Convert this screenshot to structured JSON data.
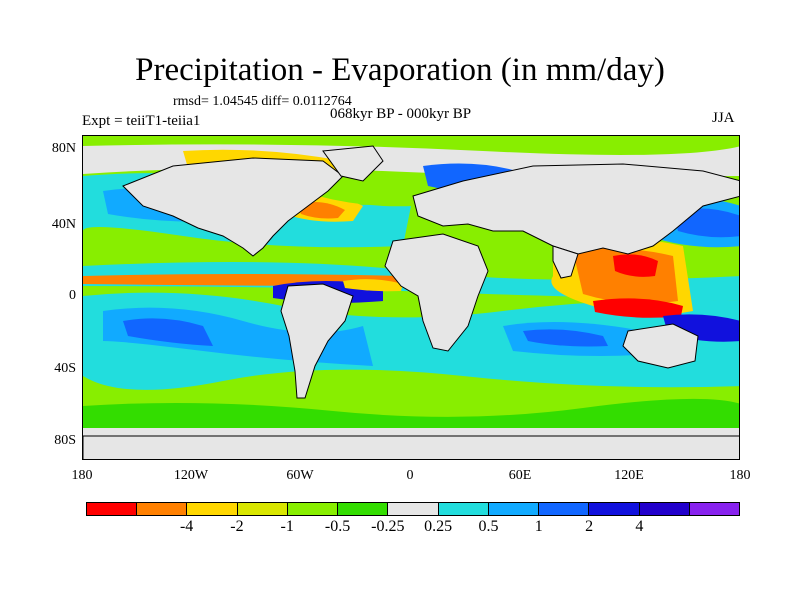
{
  "title": "Precipitation - Evaporation (in mm/day)",
  "stats": "rmsd= 1.04545 diff= 0.0112764",
  "period": "068kyr BP - 000kyr BP",
  "experiment": "Expt = teiiT1-teiia1",
  "season": "JJA",
  "lat_labels": [
    "80N",
    "40N",
    "0",
    "40S",
    "80S"
  ],
  "lon_labels": [
    "180",
    "120W",
    "60W",
    "0",
    "60E",
    "120E",
    "180"
  ],
  "colorbar": {
    "colors": [
      "#ff0000",
      "#ff8000",
      "#ffd700",
      "#d9e600",
      "#88ee00",
      "#33dd00",
      "#e6e6e6",
      "#22dddd",
      "#11aaff",
      "#1166ff",
      "#1111dd",
      "#2200cc",
      "#8822ee"
    ],
    "labels": [
      "-4",
      "-2",
      "-1",
      "-0.5",
      "-0.25",
      "0.25",
      "0.5",
      "1",
      "2",
      "4"
    ]
  },
  "map_colors": {
    "land": "#e6e6e6",
    "coast": "#000000"
  }
}
